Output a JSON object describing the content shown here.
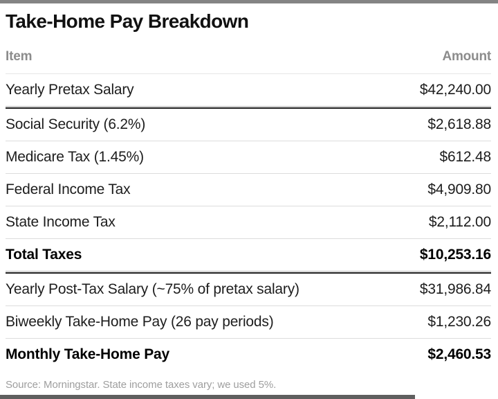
{
  "title": "Take-Home Pay Breakdown",
  "table": {
    "col_item": "Item",
    "col_amount": "Amount",
    "rows": [
      {
        "item": "Yearly Pretax Salary",
        "amount": "$42,240.00"
      },
      {
        "item": "Social Security (6.2%)",
        "amount": "$2,618.88"
      },
      {
        "item": "Medicare Tax (1.45%)",
        "amount": "$612.48"
      },
      {
        "item": "Federal Income Tax",
        "amount": "$4,909.80"
      },
      {
        "item": "State Income Tax",
        "amount": "$2,112.00"
      },
      {
        "item": "Total Taxes",
        "amount": "$10,253.16"
      },
      {
        "item": "Yearly Post-Tax Salary (~75% of pretax salary)",
        "amount": "$31,986.84"
      },
      {
        "item": "Biweekly Take-Home Pay (26 pay periods)",
        "amount": "$1,230.26"
      },
      {
        "item": "Monthly Take-Home Pay",
        "amount": "$2,460.53"
      }
    ]
  },
  "source": "Source: Morningstar. State income taxes vary; we used 5%.",
  "colors": {
    "top_bar": "#848484",
    "bottom_bar": "#5f5f5f",
    "heavy_rule": "#1c1c1c",
    "thin_rule": "#dcdcdc",
    "header_text": "#8c8c8c",
    "body_text": "#1d1d1d",
    "source_text": "#9e9e9e"
  },
  "chart_data": {
    "type": "table",
    "title": "Take-Home Pay Breakdown",
    "columns": [
      "Item",
      "Amount"
    ],
    "rows": [
      [
        "Yearly Pretax Salary",
        42240.0
      ],
      [
        "Social Security (6.2%)",
        2618.88
      ],
      [
        "Medicare Tax (1.45%)",
        612.48
      ],
      [
        "Federal Income Tax",
        4909.8
      ],
      [
        "State Income Tax",
        2112.0
      ],
      [
        "Total Taxes",
        10253.16
      ],
      [
        "Yearly Post-Tax Salary (~75% of pretax salary)",
        31986.84
      ],
      [
        "Biweekly Take-Home Pay (26 pay periods)",
        1230.26
      ],
      [
        "Monthly Take-Home Pay",
        2460.53
      ]
    ],
    "bold_rows": [
      "Total Taxes",
      "Monthly Take-Home Pay"
    ],
    "source": "Source: Morningstar. State income taxes vary; we used 5%."
  }
}
